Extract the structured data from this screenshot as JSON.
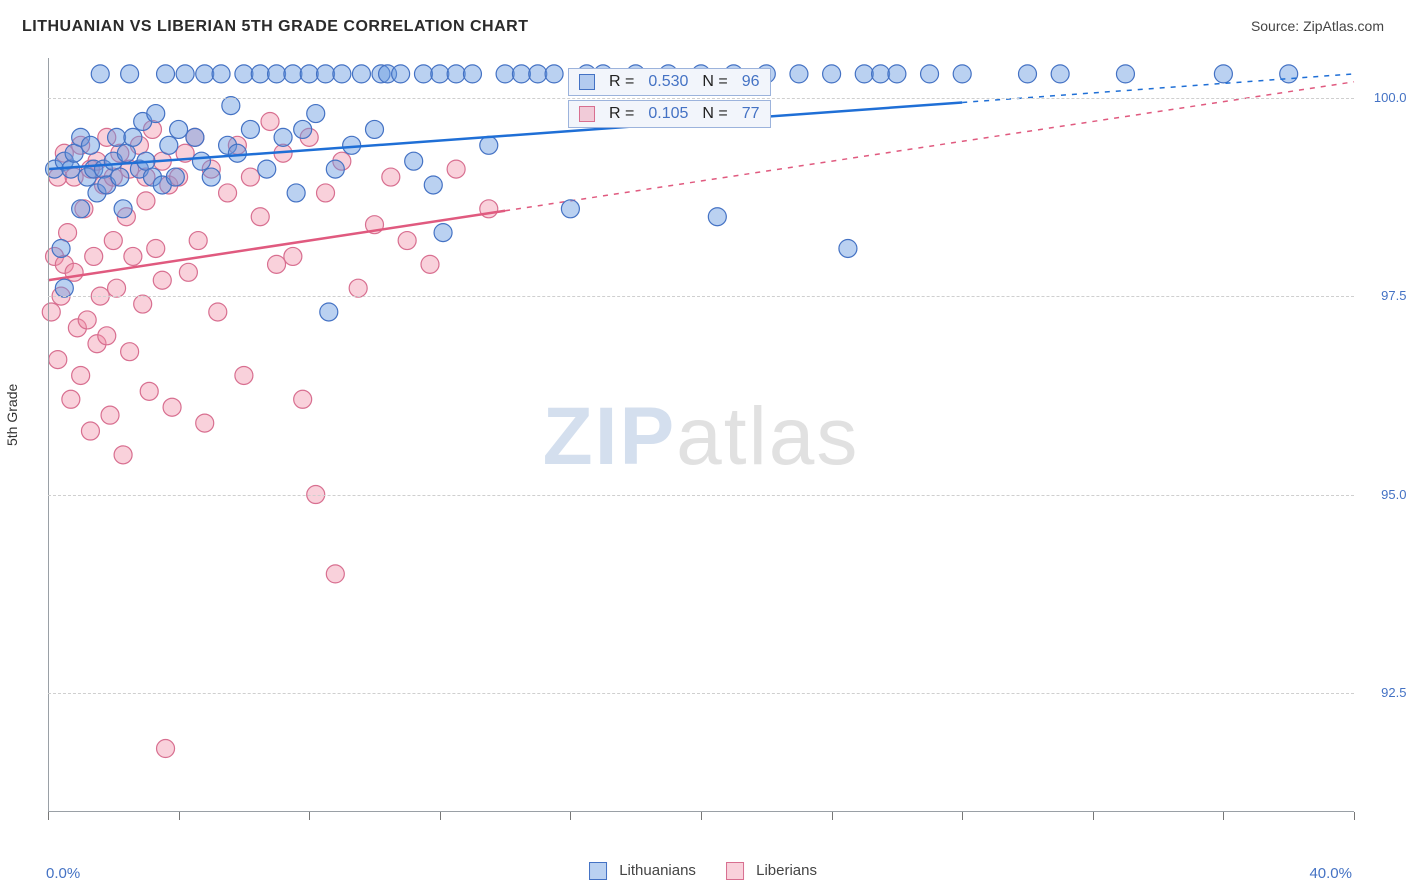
{
  "header": {
    "title": "LITHUANIAN VS LIBERIAN 5TH GRADE CORRELATION CHART",
    "source_label": "Source: ZipAtlas.com"
  },
  "axes": {
    "y_title": "5th Grade",
    "x_min": 0.0,
    "x_max": 40.0,
    "x_min_label": "0.0%",
    "x_max_label": "40.0%",
    "x_ticks": [
      0,
      4,
      8,
      12,
      16,
      20,
      24,
      28,
      32,
      36,
      40
    ],
    "y_min": 91.0,
    "y_max": 100.5,
    "y_ticks": [
      {
        "v": 92.5,
        "label": "92.5%"
      },
      {
        "v": 95.0,
        "label": "95.0%"
      },
      {
        "v": 97.5,
        "label": "97.5%"
      },
      {
        "v": 100.0,
        "label": "100.0%"
      }
    ],
    "grid_color": "#cfcfcf",
    "axis_color": "#9aa0a6",
    "tick_label_color": "#4472c4"
  },
  "series": {
    "lithuanians": {
      "label": "Lithuanians",
      "marker_fill": "rgba(102,153,225,0.45)",
      "marker_stroke": "#4472c4",
      "marker_radius": 9,
      "line_color": "#1f6fd6",
      "line_width": 2.5,
      "line_x_solid": [
        0,
        28
      ],
      "line_x_dash": [
        28,
        40
      ],
      "line_y_at_x": [
        99.1,
        100.3
      ],
      "r_label": "R =",
      "r_value": "0.530",
      "n_label": "N =",
      "n_value": "96",
      "points": [
        [
          0.2,
          99.1
        ],
        [
          0.4,
          98.1
        ],
        [
          0.5,
          99.2
        ],
        [
          0.5,
          97.6
        ],
        [
          0.7,
          99.1
        ],
        [
          0.8,
          99.3
        ],
        [
          1.0,
          98.6
        ],
        [
          1.0,
          99.5
        ],
        [
          1.2,
          99.0
        ],
        [
          1.3,
          99.4
        ],
        [
          1.4,
          99.1
        ],
        [
          1.5,
          98.8
        ],
        [
          1.6,
          100.3
        ],
        [
          1.7,
          99.1
        ],
        [
          1.8,
          98.9
        ],
        [
          2.0,
          99.2
        ],
        [
          2.1,
          99.5
        ],
        [
          2.2,
          99.0
        ],
        [
          2.3,
          98.6
        ],
        [
          2.4,
          99.3
        ],
        [
          2.5,
          100.3
        ],
        [
          2.6,
          99.5
        ],
        [
          2.8,
          99.1
        ],
        [
          2.9,
          99.7
        ],
        [
          3.0,
          99.2
        ],
        [
          3.2,
          99.0
        ],
        [
          3.3,
          99.8
        ],
        [
          3.5,
          98.9
        ],
        [
          3.6,
          100.3
        ],
        [
          3.7,
          99.4
        ],
        [
          3.9,
          99.0
        ],
        [
          4.0,
          99.6
        ],
        [
          4.2,
          100.3
        ],
        [
          4.5,
          99.5
        ],
        [
          4.7,
          99.2
        ],
        [
          4.8,
          100.3
        ],
        [
          5.0,
          99.0
        ],
        [
          5.3,
          100.3
        ],
        [
          5.5,
          99.4
        ],
        [
          5.6,
          99.9
        ],
        [
          5.8,
          99.3
        ],
        [
          6.0,
          100.3
        ],
        [
          6.2,
          99.6
        ],
        [
          6.5,
          100.3
        ],
        [
          6.7,
          99.1
        ],
        [
          7.0,
          100.3
        ],
        [
          7.2,
          99.5
        ],
        [
          7.5,
          100.3
        ],
        [
          7.6,
          98.8
        ],
        [
          7.8,
          99.6
        ],
        [
          8.0,
          100.3
        ],
        [
          8.2,
          99.8
        ],
        [
          8.5,
          100.3
        ],
        [
          8.6,
          97.3
        ],
        [
          8.8,
          99.1
        ],
        [
          9.0,
          100.3
        ],
        [
          9.3,
          99.4
        ],
        [
          9.6,
          100.3
        ],
        [
          10.0,
          99.6
        ],
        [
          10.2,
          100.3
        ],
        [
          10.4,
          100.3
        ],
        [
          10.8,
          100.3
        ],
        [
          11.2,
          99.2
        ],
        [
          11.5,
          100.3
        ],
        [
          11.8,
          98.9
        ],
        [
          12.0,
          100.3
        ],
        [
          12.1,
          98.3
        ],
        [
          12.5,
          100.3
        ],
        [
          13.0,
          100.3
        ],
        [
          13.5,
          99.4
        ],
        [
          14.0,
          100.3
        ],
        [
          14.5,
          100.3
        ],
        [
          15.0,
          100.3
        ],
        [
          15.5,
          100.3
        ],
        [
          16.0,
          98.6
        ],
        [
          16.5,
          100.3
        ],
        [
          17.0,
          100.3
        ],
        [
          18.0,
          100.3
        ],
        [
          19.0,
          100.3
        ],
        [
          20.0,
          100.3
        ],
        [
          20.5,
          98.5
        ],
        [
          21.0,
          100.3
        ],
        [
          22.0,
          100.3
        ],
        [
          23.0,
          100.3
        ],
        [
          24.0,
          100.3
        ],
        [
          24.5,
          98.1
        ],
        [
          25.0,
          100.3
        ],
        [
          25.5,
          100.3
        ],
        [
          26.0,
          100.3
        ],
        [
          27.0,
          100.3
        ],
        [
          28.0,
          100.3
        ],
        [
          30.0,
          100.3
        ],
        [
          31.0,
          100.3
        ],
        [
          33.0,
          100.3
        ],
        [
          36.0,
          100.3
        ],
        [
          38.0,
          100.3
        ]
      ]
    },
    "liberians": {
      "label": "Liberians",
      "marker_fill": "rgba(240,140,165,0.40)",
      "marker_stroke": "#d86f90",
      "marker_radius": 9,
      "line_color": "#e05a7f",
      "line_width": 2.5,
      "line_x_solid": [
        0,
        14
      ],
      "line_x_dash": [
        14,
        40
      ],
      "line_y_at_x": [
        97.7,
        100.2
      ],
      "r_label": "R =",
      "r_value": "0.105",
      "n_label": "N =",
      "n_value": "77",
      "points": [
        [
          0.1,
          97.3
        ],
        [
          0.2,
          98.0
        ],
        [
          0.3,
          99.0
        ],
        [
          0.3,
          96.7
        ],
        [
          0.4,
          97.5
        ],
        [
          0.5,
          97.9
        ],
        [
          0.5,
          99.3
        ],
        [
          0.6,
          98.3
        ],
        [
          0.7,
          96.2
        ],
        [
          0.8,
          97.8
        ],
        [
          0.8,
          99.0
        ],
        [
          0.9,
          97.1
        ],
        [
          1.0,
          99.4
        ],
        [
          1.0,
          96.5
        ],
        [
          1.1,
          98.6
        ],
        [
          1.2,
          97.2
        ],
        [
          1.3,
          99.1
        ],
        [
          1.3,
          95.8
        ],
        [
          1.4,
          98.0
        ],
        [
          1.5,
          99.2
        ],
        [
          1.5,
          96.9
        ],
        [
          1.6,
          97.5
        ],
        [
          1.7,
          98.9
        ],
        [
          1.8,
          99.5
        ],
        [
          1.8,
          97.0
        ],
        [
          1.9,
          96.0
        ],
        [
          2.0,
          99.0
        ],
        [
          2.0,
          98.2
        ],
        [
          2.1,
          97.6
        ],
        [
          2.2,
          99.3
        ],
        [
          2.3,
          95.5
        ],
        [
          2.4,
          98.5
        ],
        [
          2.5,
          99.1
        ],
        [
          2.5,
          96.8
        ],
        [
          2.6,
          98.0
        ],
        [
          2.8,
          99.4
        ],
        [
          2.9,
          97.4
        ],
        [
          3.0,
          99.0
        ],
        [
          3.0,
          98.7
        ],
        [
          3.1,
          96.3
        ],
        [
          3.2,
          99.6
        ],
        [
          3.3,
          98.1
        ],
        [
          3.5,
          99.2
        ],
        [
          3.5,
          97.7
        ],
        [
          3.6,
          91.8
        ],
        [
          3.7,
          98.9
        ],
        [
          3.8,
          96.1
        ],
        [
          4.0,
          99.0
        ],
        [
          4.2,
          99.3
        ],
        [
          4.3,
          97.8
        ],
        [
          4.5,
          99.5
        ],
        [
          4.6,
          98.2
        ],
        [
          4.8,
          95.9
        ],
        [
          5.0,
          99.1
        ],
        [
          5.2,
          97.3
        ],
        [
          5.5,
          98.8
        ],
        [
          5.8,
          99.4
        ],
        [
          6.0,
          96.5
        ],
        [
          6.2,
          99.0
        ],
        [
          6.5,
          98.5
        ],
        [
          6.8,
          99.7
        ],
        [
          7.0,
          97.9
        ],
        [
          7.2,
          99.3
        ],
        [
          7.5,
          98.0
        ],
        [
          7.8,
          96.2
        ],
        [
          8.0,
          99.5
        ],
        [
          8.2,
          95.0
        ],
        [
          8.5,
          98.8
        ],
        [
          8.8,
          94.0
        ],
        [
          9.0,
          99.2
        ],
        [
          9.5,
          97.6
        ],
        [
          10.0,
          98.4
        ],
        [
          10.5,
          99.0
        ],
        [
          11.0,
          98.2
        ],
        [
          11.7,
          97.9
        ],
        [
          12.5,
          99.1
        ],
        [
          13.5,
          98.6
        ]
      ]
    }
  },
  "legend_bottom": {
    "series1": "Lithuanians",
    "series2": "Liberians"
  },
  "watermark": {
    "zip": "ZIP",
    "atlas": "atlas"
  }
}
